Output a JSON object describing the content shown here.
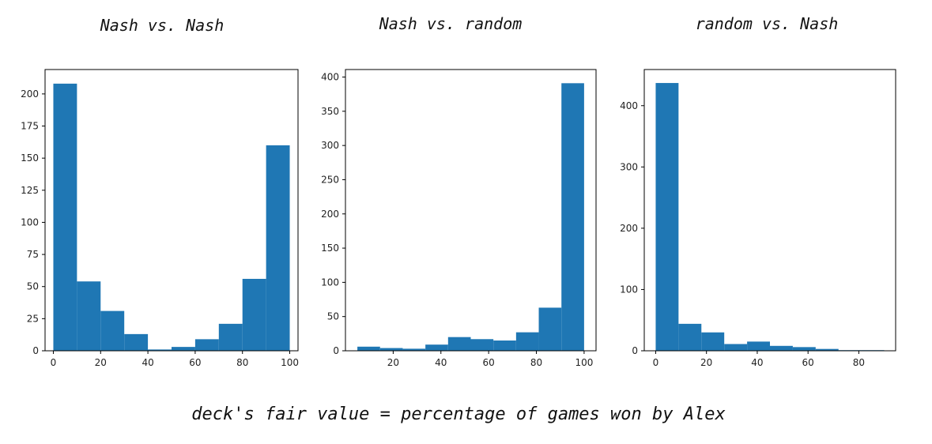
{
  "figure": {
    "caption": "deck's fair value = percentage of games won by Alex",
    "bar_color": "#1f77b4"
  },
  "chart_data": [
    {
      "type": "bar",
      "title": "Nash vs. Nash",
      "bin_edges": [
        0,
        10,
        20,
        30,
        40,
        50,
        60,
        70,
        80,
        90,
        100
      ],
      "values": [
        208,
        54,
        31,
        13,
        1,
        3,
        9,
        21,
        56,
        160
      ],
      "xlim": [
        -3.5,
        103.5
      ],
      "ylim": [
        0,
        219
      ],
      "xticks": [
        0,
        20,
        40,
        60,
        80,
        100
      ],
      "yticks": [
        0,
        25,
        50,
        75,
        100,
        125,
        150,
        175,
        200
      ],
      "grid": false
    },
    {
      "type": "bar",
      "title": "Nash vs. random",
      "bin_edges": [
        5,
        14.5,
        24,
        33.5,
        43,
        52.5,
        62,
        71.5,
        81,
        90.5,
        100
      ],
      "values": [
        6,
        4,
        3,
        9,
        20,
        17,
        15,
        27,
        63,
        391
      ],
      "xlim": [
        0,
        105
      ],
      "ylim": [
        0,
        411
      ],
      "xticks": [
        20,
        40,
        60,
        80,
        100
      ],
      "yticks": [
        0,
        50,
        100,
        150,
        200,
        250,
        300,
        350,
        400
      ],
      "grid": false
    },
    {
      "type": "bar",
      "title": "random vs. Nash",
      "bin_edges": [
        0,
        9,
        18,
        27,
        36,
        45,
        54,
        63,
        72,
        81,
        90
      ],
      "values": [
        437,
        44,
        30,
        11,
        15,
        8,
        6,
        3,
        1,
        1
      ],
      "xlim": [
        -4.5,
        94.5
      ],
      "ylim": [
        0,
        459
      ],
      "xticks": [
        0,
        20,
        40,
        60,
        80
      ],
      "yticks": [
        0,
        100,
        200,
        300,
        400
      ],
      "grid": false
    }
  ]
}
